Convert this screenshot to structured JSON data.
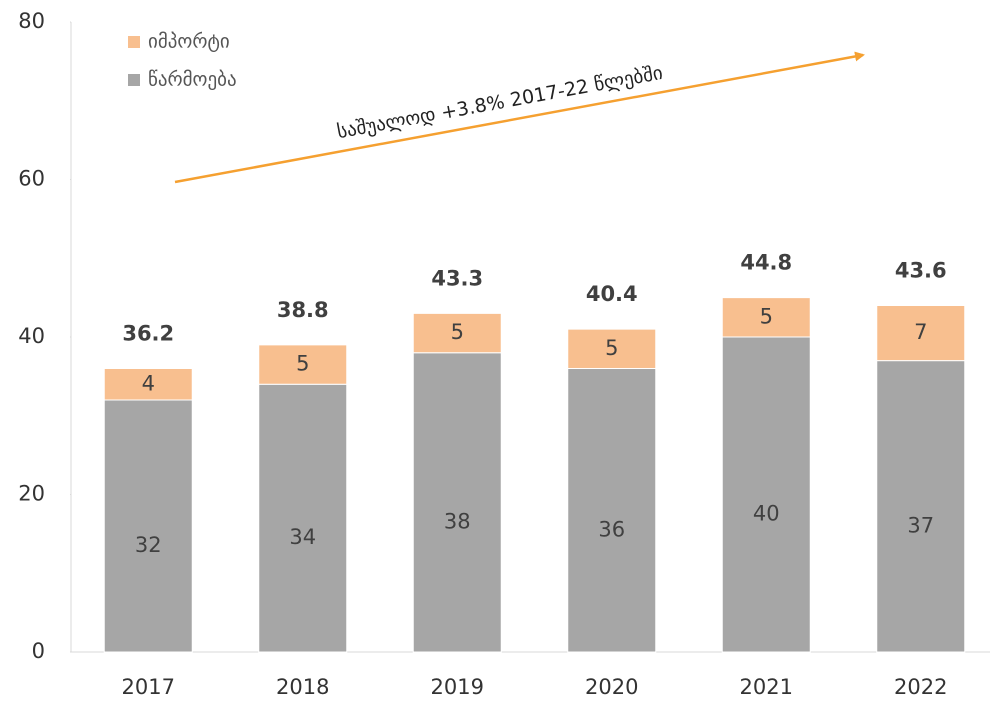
{
  "chart_data": {
    "type": "stacked_bar",
    "categories": [
      "2017",
      "2018",
      "2019",
      "2020",
      "2021",
      "2022"
    ],
    "series": [
      {
        "name": "წარმოება",
        "color": "#a6a6a6",
        "values": [
          32,
          34,
          38,
          36,
          40,
          37
        ]
      },
      {
        "name": "იმპორტი",
        "color": "#f8bf8f",
        "values": [
          4,
          5,
          5,
          5,
          5,
          7
        ]
      }
    ],
    "totals": [
      "36.2",
      "38.8",
      "43.3",
      "40.4",
      "44.8",
      "43.6"
    ],
    "annotation": "საშუალოდ +3.8% 2017-22 წლებში",
    "arrow_color": "#f5a030",
    "ylim": [
      0,
      80
    ],
    "yticks": [
      0,
      20,
      40,
      60,
      80
    ],
    "grid": false
  }
}
